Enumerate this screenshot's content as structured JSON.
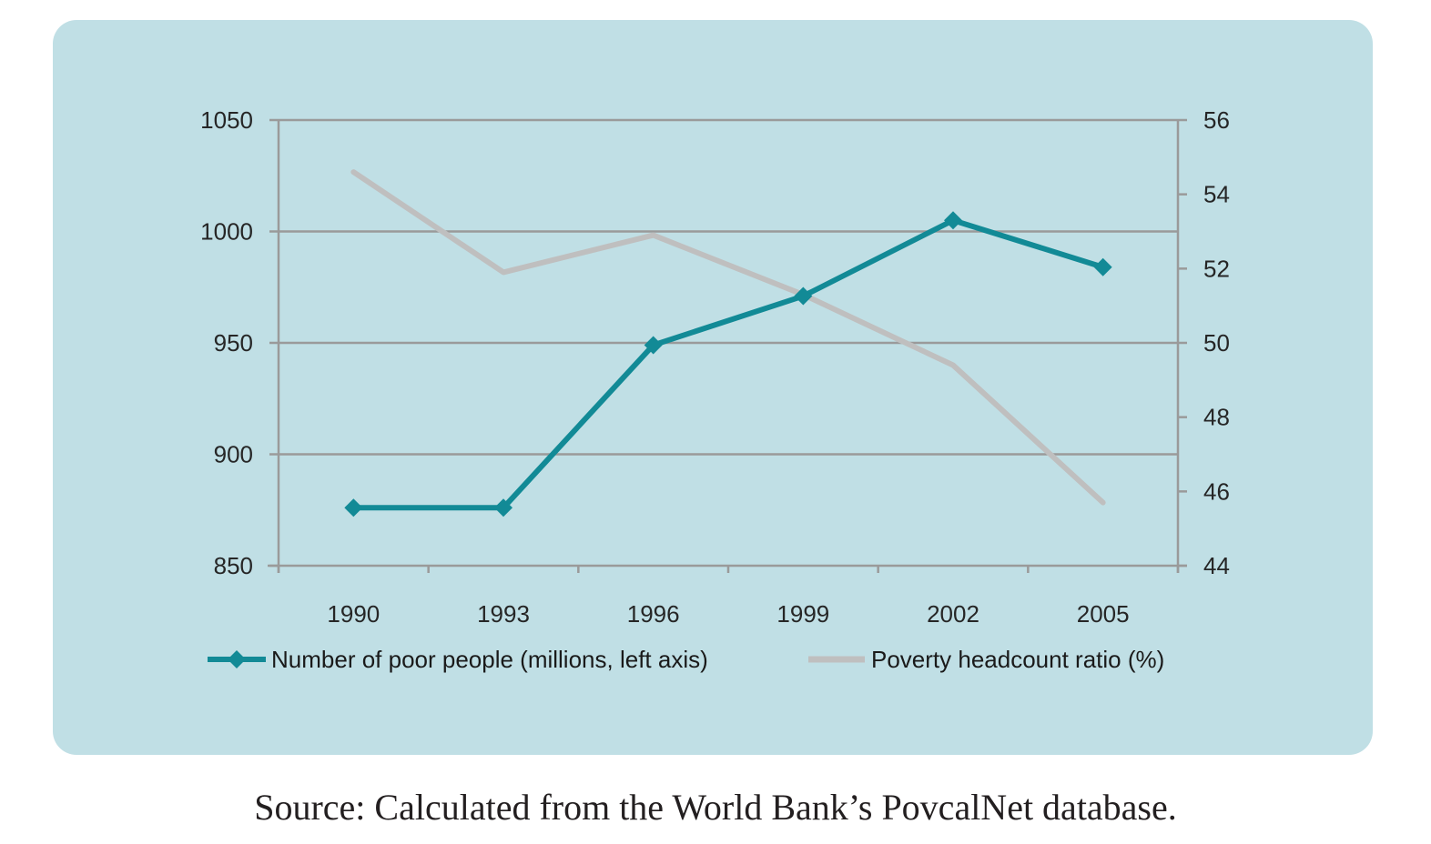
{
  "chart_data": {
    "type": "line",
    "categories": [
      "1990",
      "1993",
      "1996",
      "1999",
      "2002",
      "2005"
    ],
    "series": [
      {
        "name": "Number of poor people (millions, left axis)",
        "axis": "left",
        "color": "#128a96",
        "marker": "diamond",
        "values": [
          876,
          876,
          949,
          971,
          1005,
          984
        ]
      },
      {
        "name": "Poverty headcount ratio (%)",
        "axis": "right",
        "color": "#bfbfbf",
        "marker": "none",
        "values": [
          54.6,
          51.9,
          52.9,
          51.3,
          49.4,
          45.7
        ]
      }
    ],
    "y_left": {
      "min": 850,
      "max": 1050,
      "ticks": [
        850,
        900,
        950,
        1000,
        1050
      ]
    },
    "y_right": {
      "min": 44,
      "max": 56,
      "ticks": [
        44,
        46,
        48,
        50,
        52,
        54,
        56
      ]
    },
    "grid": true,
    "legend_position": "bottom"
  },
  "source_note": "Source: Calculated from the World Bank’s PovcalNet database.",
  "colors": {
    "panel_background": "#c0dfe5",
    "gridline": "#9a9a9a"
  }
}
